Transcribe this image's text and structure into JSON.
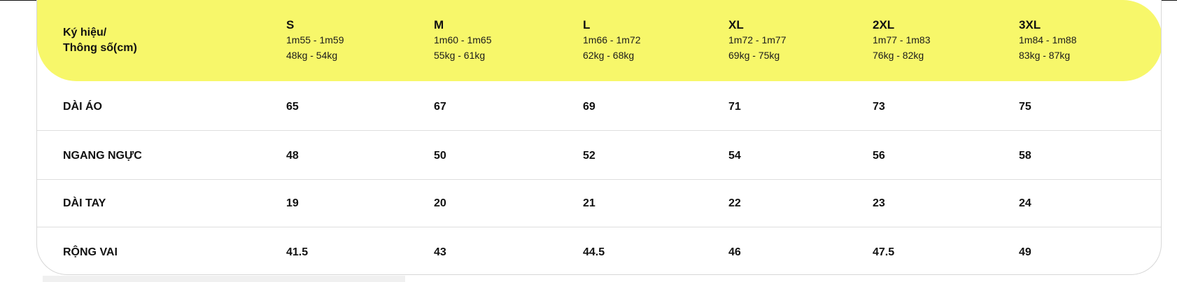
{
  "table": {
    "header": {
      "label_line1": "Ký hiệu/",
      "label_line2": "Thông số(cm)",
      "sizes": [
        {
          "name": "S",
          "height": "1m55 - 1m59",
          "weight": "48kg - 54kg"
        },
        {
          "name": "M",
          "height": "1m60 - 1m65",
          "weight": "55kg - 61kg"
        },
        {
          "name": "L",
          "height": "1m66 - 1m72",
          "weight": "62kg - 68kg"
        },
        {
          "name": "XL",
          "height": "1m72 - 1m77",
          "weight": "69kg - 75kg"
        },
        {
          "name": "2XL",
          "height": "1m77 - 1m83",
          "weight": "76kg - 82kg"
        },
        {
          "name": "3XL",
          "height": "1m84 - 1m88",
          "weight": "83kg - 87kg"
        }
      ]
    },
    "rows": [
      {
        "label": "DÀI ÁO",
        "values": [
          "65",
          "67",
          "69",
          "71",
          "73",
          "75"
        ]
      },
      {
        "label": "NGANG NGỰC",
        "values": [
          "48",
          "50",
          "52",
          "54",
          "56",
          "58"
        ]
      },
      {
        "label": "DÀI TAY",
        "values": [
          "19",
          "20",
          "21",
          "22",
          "23",
          "24"
        ]
      },
      {
        "label": "RỘNG VAI",
        "values": [
          "41.5",
          "43",
          "44.5",
          "46",
          "47.5",
          "49"
        ]
      }
    ]
  }
}
